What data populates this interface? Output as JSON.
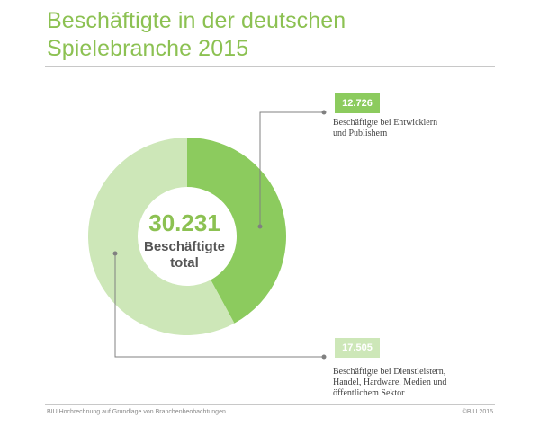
{
  "title_line1": "Beschäftigte in der deutschen",
  "title_line2": "Spielebranche 2015",
  "colors": {
    "accent": "#8cc152",
    "slice_dark": "#8ccb5e",
    "slice_light": "#cde7b8",
    "connector": "#808080"
  },
  "chart_data": {
    "type": "pie",
    "title": "Beschäftigte in der deutschen Spielebranche 2015",
    "center_total": "30.231",
    "center_label_line1": "Beschäftigte",
    "center_label_line2": "total",
    "total": 30231,
    "slices": [
      {
        "label": "12.726",
        "value": 12726,
        "description_line1": "Beschäftigte bei Entwicklern",
        "description_line2": "und Publishern"
      },
      {
        "label": "17.505",
        "value": 17505,
        "description_line1": "Beschäftigte bei Dienstleistern,",
        "description_line2": "Handel, Hardware, Medien und",
        "description_line3": "öffentlichem Sektor"
      }
    ]
  },
  "footer": {
    "source": "BIU Hochrechnung auf Grundlage von Branchenbeobachtungen",
    "copyright": "©BIU 2015"
  }
}
